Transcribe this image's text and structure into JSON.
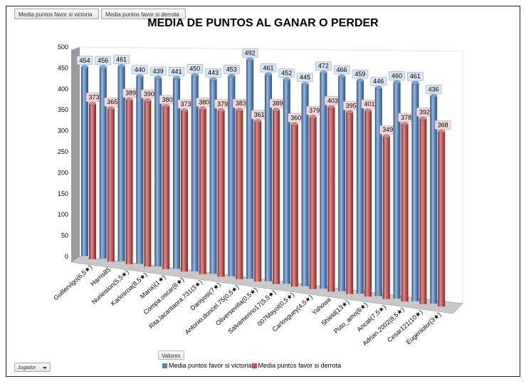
{
  "field_buttons": {
    "victoria": "Media puntos favor si victoria",
    "derrota": "Media puntos favor si derrota"
  },
  "values_button": "Valores",
  "jugador_filter": "Jugador",
  "colors": {
    "series1": "#4f81bd",
    "series2": "#c0504d",
    "label1": "#dbe5f1",
    "label2": "#f2dcdb"
  },
  "chart_data": {
    "type": "bar",
    "title": "MEDIA DE PUNTOS AL GANAR O PERDER",
    "categories": [
      "Guillervigo(6,5★)",
      "Harris85",
      "Nurieision(5,5★)",
      "Karlosroa(8,5★)",
      "Maria)(1★)",
      "Compa.oscar(6★)",
      "Rita.lacantaora.731(3★)",
      "Daniyosi(7★)",
      "Antonio.doncel.75(0,5★)",
      "Oliversevilla(0,5★)",
      "Salvamerino17(5,5★)",
      "007Mayol(0,5★)",
      "Carlosguey(4,5★)",
      "Yahowa",
      "Shield(13★)",
      "Puto_amo(6★)",
      "Ancali(7,5★)",
      "Adrian.2002(8,5★)",
      "Cesar121(10★)",
      "Eugeniolor(3★)"
    ],
    "series": [
      {
        "name": "Media puntos favor si victoria",
        "values": [
          454,
          456,
          461,
          440,
          439,
          441,
          450,
          443,
          453,
          492,
          461,
          452,
          445,
          472,
          466,
          459,
          446,
          460,
          461,
          436
        ]
      },
      {
        "name": "Media puntos favor si derrota",
        "values": [
          373,
          365,
          389,
          390,
          380,
          373,
          380,
          379,
          383,
          361,
          389,
          360,
          379,
          403,
          395,
          401,
          349,
          378,
          392,
          368
        ]
      }
    ],
    "ylim": [
      0,
      500
    ],
    "yticks": [
      "0",
      "50",
      "100",
      "150",
      "200",
      "250",
      "300",
      "350",
      "400",
      "450",
      "500"
    ],
    "grid": false,
    "legend_position": "bottom"
  }
}
